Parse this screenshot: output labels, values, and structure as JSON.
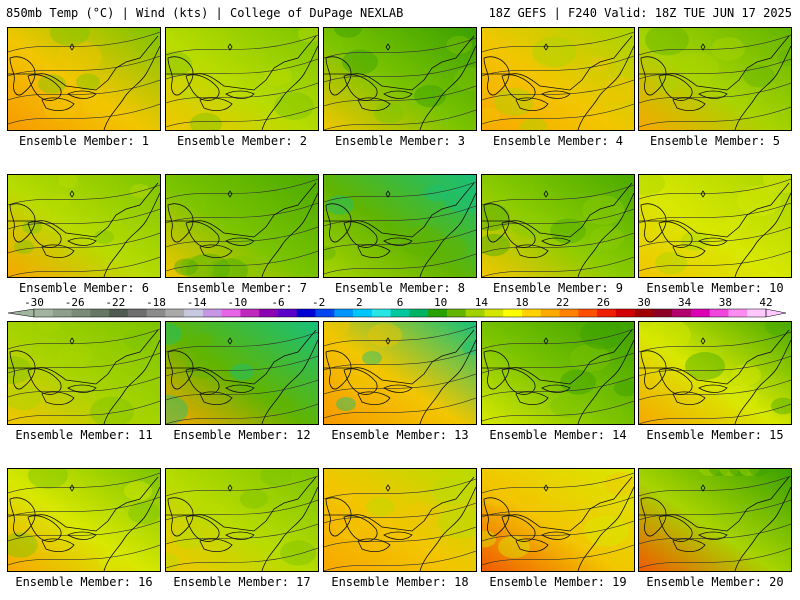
{
  "header": {
    "left": "850mb Temp (°C) | Wind (kts) | College of DuPage NEXLAB",
    "right": "18Z GEFS | F240 Valid: 18Z TUE JUN 17 2025"
  },
  "members": [
    {
      "label": "Ensemble Member: 1",
      "base": "#f2c600",
      "warm": "#f79a00",
      "cool": "#7cc400"
    },
    {
      "label": "Ensemble Member: 2",
      "base": "#b8dc00",
      "warm": "#f2c600",
      "cool": "#7cc400"
    },
    {
      "label": "Ensemble Member: 3",
      "base": "#7cc400",
      "warm": "#f2c600",
      "cool": "#3aa000"
    },
    {
      "label": "Ensemble Member: 4",
      "base": "#f2c600",
      "warm": "#f7a800",
      "cool": "#a8d400"
    },
    {
      "label": "Ensemble Member: 5",
      "base": "#a8d400",
      "warm": "#f7a800",
      "cool": "#62b400"
    },
    {
      "label": "Ensemble Member: 6",
      "base": "#b8dc00",
      "warm": "#f7a800",
      "cool": "#7cc400"
    },
    {
      "label": "Ensemble Member: 7",
      "base": "#7cc400",
      "warm": "#f2c600",
      "cool": "#4aaa00"
    },
    {
      "label": "Ensemble Member: 8",
      "base": "#62b400",
      "warm": "#a8d400",
      "cool": "#17c07a"
    },
    {
      "label": "Ensemble Member: 9",
      "base": "#8ccc00",
      "warm": "#f2c600",
      "cool": "#4aaa00"
    },
    {
      "label": "Ensemble Member: 10",
      "base": "#d8e800",
      "warm": "#f2c600",
      "cool": "#a8d400"
    },
    {
      "label": "Ensemble Member: 11",
      "base": "#a8d400",
      "warm": "#f2c600",
      "cool": "#7cc400"
    },
    {
      "label": "Ensemble Member: 12",
      "base": "#62b400",
      "warm": "#f7a800",
      "cool": "#17c07a"
    },
    {
      "label": "Ensemble Member: 13",
      "base": "#f2c600",
      "warm": "#f79a00",
      "cool": "#17c07a"
    },
    {
      "label": "Ensemble Member: 14",
      "base": "#7cc400",
      "warm": "#d8e800",
      "cool": "#3aa000"
    },
    {
      "label": "Ensemble Member: 15",
      "base": "#d8e800",
      "warm": "#f7a800",
      "cool": "#4aaa00"
    },
    {
      "label": "Ensemble Member: 16",
      "base": "#d8e800",
      "warm": "#f7a800",
      "cool": "#7cc400"
    },
    {
      "label": "Ensemble Member: 17",
      "base": "#b8dc00",
      "warm": "#f2c600",
      "cool": "#7cc400"
    },
    {
      "label": "Ensemble Member: 18",
      "base": "#f2c600",
      "warm": "#f7a800",
      "cool": "#b8dc00"
    },
    {
      "label": "Ensemble Member: 19",
      "base": "#f2c600",
      "warm": "#f05a00",
      "cool": "#d8e800"
    },
    {
      "label": "Ensemble Member: 20",
      "base": "#a8d400",
      "warm": "#f05a00",
      "cool": "#3aa000"
    }
  ],
  "colorbar": {
    "labels": [
      "-30",
      "-26",
      "-22",
      "-18",
      "-14",
      "-10",
      "-6",
      "-2",
      "2",
      "6",
      "10",
      "14",
      "18",
      "22",
      "26",
      "30",
      "34",
      "38",
      "42"
    ],
    "colors": [
      "#a0b4a0",
      "#8ca08c",
      "#788c78",
      "#647864",
      "#505a50",
      "#6e6e6e",
      "#8c8c8c",
      "#aaaaaa",
      "#c8c8e0",
      "#c896e6",
      "#e664e6",
      "#be28be",
      "#8c00b4",
      "#5a00c8",
      "#0000d2",
      "#0046f0",
      "#0096ff",
      "#00c8ff",
      "#28e6e6",
      "#00c8a0",
      "#00b464",
      "#28a000",
      "#64b400",
      "#a0d200",
      "#d2e600",
      "#ffff00",
      "#ffd200",
      "#ffaa00",
      "#ff8200",
      "#ff5000",
      "#f01e00",
      "#d20000",
      "#a00000",
      "#8c0028",
      "#b4006e",
      "#dc00b4",
      "#f046dc",
      "#ff8cf0",
      "#ffc8ff"
    ]
  }
}
